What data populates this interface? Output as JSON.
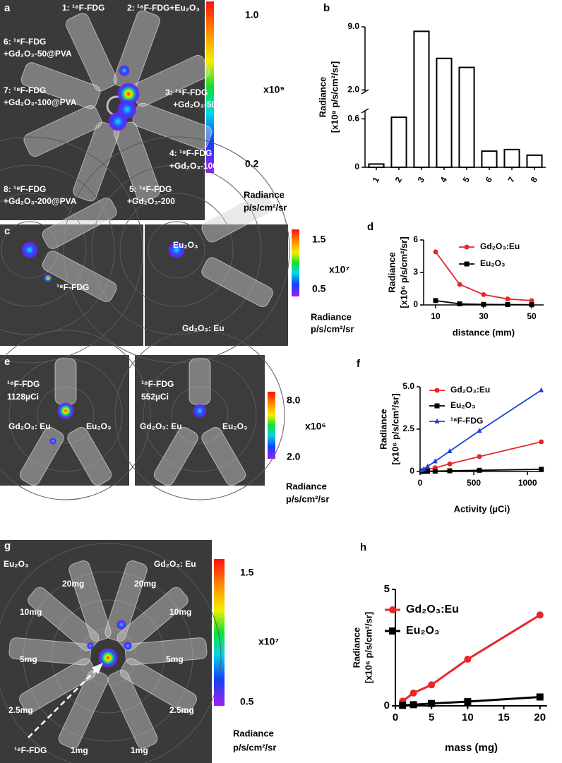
{
  "panel_a": {
    "label": "a",
    "texts": [
      "1: ¹⁸F-FDG",
      "2: ¹⁸F-FDG+Eu₂O₃",
      "6: ¹⁸F-FDG",
      "+Gd₂O₃-50@PVA",
      "3: ¹⁸F-FDG",
      "+Gd₂O₃-50",
      "7: ¹⁸F-FDG",
      "+Gd₂O₃-100@PVA",
      "4: ¹⁸F-FDG",
      "+Gd₂O₃-100",
      "8: ¹⁸F-FDG",
      "+Gd₂O₃-200@PVA",
      "5: ¹⁸F-FDG",
      "+Gd₂O₃-200"
    ],
    "colorbar": [
      "1.0",
      "x10⁹",
      "0.2",
      "Radiance",
      "p/s/cm²/sr"
    ]
  },
  "panel_c": {
    "label": "c",
    "texts": [
      "¹⁸F-FDG",
      "Eu₂O₃",
      "Gd₂O₃: Eu"
    ],
    "colorbar": [
      "1.5",
      "x10⁷",
      "0.5",
      "Radiance",
      "p/s/cm²/sr"
    ]
  },
  "panel_e": {
    "label": "e",
    "texts": [
      "¹⁸F-FDG",
      "1128µCi",
      "Gd₂O₃: Eu",
      "Eu₂O₃",
      "¹⁸F-FDG",
      "552µCi",
      "Gd₂O₃: Eu",
      "Eu₂O₃"
    ],
    "colorbar": [
      "8.0",
      "x10⁶",
      "2.0",
      "Radiance",
      "p/s/cm²/sr"
    ]
  },
  "panel_g": {
    "label": "g",
    "texts": [
      "Eu₂O₃",
      "Gd₂O₃: Eu",
      "20mg",
      "20mg",
      "10mg",
      "10mg",
      "5mg",
      "5mg",
      "2.5mg",
      "2.5mg",
      "¹⁸F-FDG",
      "1mg",
      "1mg"
    ],
    "colorbar": [
      "1.5",
      "x10⁷",
      "0.5",
      "Radiance",
      "p/s/cm²/sr"
    ]
  },
  "chart_data": [
    {
      "type": "bar",
      "panel_label": "b",
      "ylabel": [
        "Radiance",
        "[x10⁸ p/s/cm²/sr]"
      ],
      "categories": [
        "1",
        "2",
        "3",
        "4",
        "5",
        "6",
        "7",
        "8"
      ],
      "values": [
        0.04,
        0.62,
        8.5,
        5.5,
        4.5,
        0.2,
        0.22,
        0.15
      ],
      "color": "#000000",
      "ylim": [
        0,
        9
      ],
      "axis_break": [
        0.7,
        1.8
      ],
      "yticks": [
        0,
        0.6,
        {
          "value": 2,
          "label": "2.0"
        },
        {
          "value": 9,
          "label": "9.0"
        }
      ]
    },
    {
      "type": "line",
      "panel_label": "d",
      "ylabel": [
        "Radiance",
        "[x10⁶ p/s/cm²/sr]"
      ],
      "xlabel": "distance (mm)",
      "x": [
        10,
        20,
        30,
        40,
        50
      ],
      "series": [
        {
          "name": "Gd₂O₃:Eu",
          "color": "#e8262a",
          "marker": "circle",
          "values": [
            4.9,
            1.9,
            0.95,
            0.55,
            0.4
          ]
        },
        {
          "name": "Eu₂O₃",
          "color": "#000000",
          "marker": "square",
          "values": [
            0.4,
            0.1,
            0.05,
            0.03,
            0.02
          ]
        }
      ],
      "xlim": [
        5,
        55
      ],
      "xticks": [
        10,
        30,
        50
      ],
      "ylim": [
        0,
        6
      ],
      "yticks": [
        0,
        3,
        6
      ]
    },
    {
      "type": "line",
      "panel_label": "f",
      "ylabel": [
        "Radiance",
        "[x10⁶ p/s/cm²/sr]"
      ],
      "xlabel": "Activity (µCi)",
      "x": [
        17,
        35,
        70,
        140,
        276,
        552,
        1128
      ],
      "series": [
        {
          "name": "Gd₂O₃:Eu",
          "color": "#e8262a",
          "marker": "circle",
          "values": [
            0.03,
            0.06,
            0.12,
            0.22,
            0.45,
            0.88,
            1.75
          ]
        },
        {
          "name": "Eu₂O₃",
          "color": "#000000",
          "marker": "square",
          "values": [
            0.005,
            0.01,
            0.015,
            0.02,
            0.04,
            0.07,
            0.13
          ]
        },
        {
          "name": "¹⁸F-FDG",
          "color": "#1f3fd8",
          "marker": "triangle",
          "values": [
            0.08,
            0.15,
            0.3,
            0.6,
            1.2,
            2.4,
            4.8
          ]
        }
      ],
      "xlim": [
        0,
        1150
      ],
      "xticks": [
        0,
        500,
        1000
      ],
      "ylim": [
        0,
        5
      ],
      "yticks": [
        0,
        2.5,
        {
          "value": 5,
          "label": "5.0"
        }
      ]
    },
    {
      "type": "line",
      "panel_label": "h",
      "ylabel": [
        "Radiance",
        "[x10⁶ p/s/cm²/sr]"
      ],
      "xlabel": "mass (mg)",
      "x": [
        1,
        2.5,
        5,
        10,
        20
      ],
      "series": [
        {
          "name": "Gd₂O₃:Eu",
          "color": "#e8262a",
          "marker": "circle",
          "values": [
            0.2,
            0.55,
            0.9,
            2.0,
            3.9
          ]
        },
        {
          "name": "Eu₂O₃",
          "color": "#000000",
          "marker": "square",
          "values": [
            0.02,
            0.05,
            0.1,
            0.18,
            0.38
          ]
        }
      ],
      "xlim": [
        0,
        21
      ],
      "xticks": [
        0,
        5,
        10,
        15,
        20
      ],
      "ylim": [
        0,
        5
      ],
      "yticks": [
        0,
        5
      ]
    }
  ]
}
